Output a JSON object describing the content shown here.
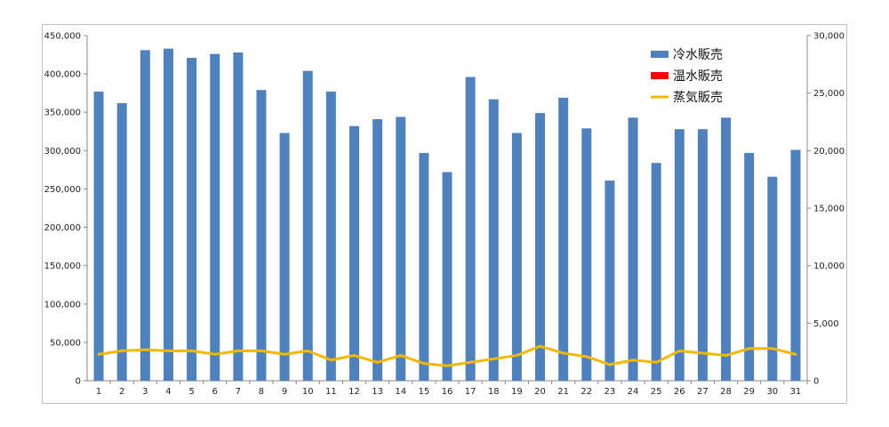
{
  "chart_data": {
    "type": "bar",
    "categories": [
      "1",
      "2",
      "3",
      "4",
      "5",
      "6",
      "7",
      "8",
      "9",
      "10",
      "11",
      "12",
      "13",
      "14",
      "15",
      "16",
      "17",
      "18",
      "19",
      "20",
      "21",
      "22",
      "23",
      "24",
      "25",
      "26",
      "27",
      "28",
      "29",
      "30",
      "31"
    ],
    "series": [
      {
        "name": "冷水販売",
        "type": "bar",
        "axis": "left",
        "color": "#4f81bd",
        "values": [
          377000,
          362000,
          431000,
          433000,
          421000,
          426000,
          428000,
          379000,
          323000,
          404000,
          377000,
          332000,
          341000,
          344000,
          297000,
          272000,
          396000,
          367000,
          323000,
          349000,
          369000,
          329000,
          261000,
          343000,
          284000,
          328000,
          328000,
          343000,
          297000,
          266000,
          301000
        ]
      },
      {
        "name": "温水販売",
        "type": "bar",
        "axis": "right",
        "color": "#ff0000",
        "values": [
          0,
          0,
          0,
          0,
          0,
          0,
          0,
          0,
          0,
          0,
          0,
          0,
          0,
          0,
          0,
          0,
          0,
          0,
          0,
          0,
          0,
          0,
          0,
          0,
          0,
          0,
          0,
          0,
          0,
          0,
          0
        ]
      },
      {
        "name": "蒸気販売",
        "type": "line",
        "axis": "right",
        "color": "#f5b800",
        "values": [
          2300,
          2600,
          2700,
          2600,
          2600,
          2300,
          2600,
          2600,
          2300,
          2600,
          1800,
          2200,
          1600,
          2200,
          1500,
          1300,
          1600,
          1900,
          2200,
          3000,
          2400,
          2100,
          1400,
          1800,
          1600,
          2600,
          2400,
          2200,
          2800,
          2800,
          2300
        ]
      }
    ],
    "y_left": {
      "ylim": [
        0,
        450000
      ],
      "ticks": [
        "0",
        "50,000",
        "100,000",
        "150,000",
        "200,000",
        "250,000",
        "300,000",
        "350,000",
        "400,000",
        "450,000"
      ]
    },
    "y_right": {
      "ylim": [
        0,
        30000
      ],
      "ticks": [
        "0",
        "5,000",
        "10,000",
        "15,000",
        "20,000",
        "25,000",
        "30,000"
      ]
    },
    "grid": false,
    "legend_position": "top-right",
    "title": "",
    "xlabel": "",
    "ylabel": ""
  }
}
